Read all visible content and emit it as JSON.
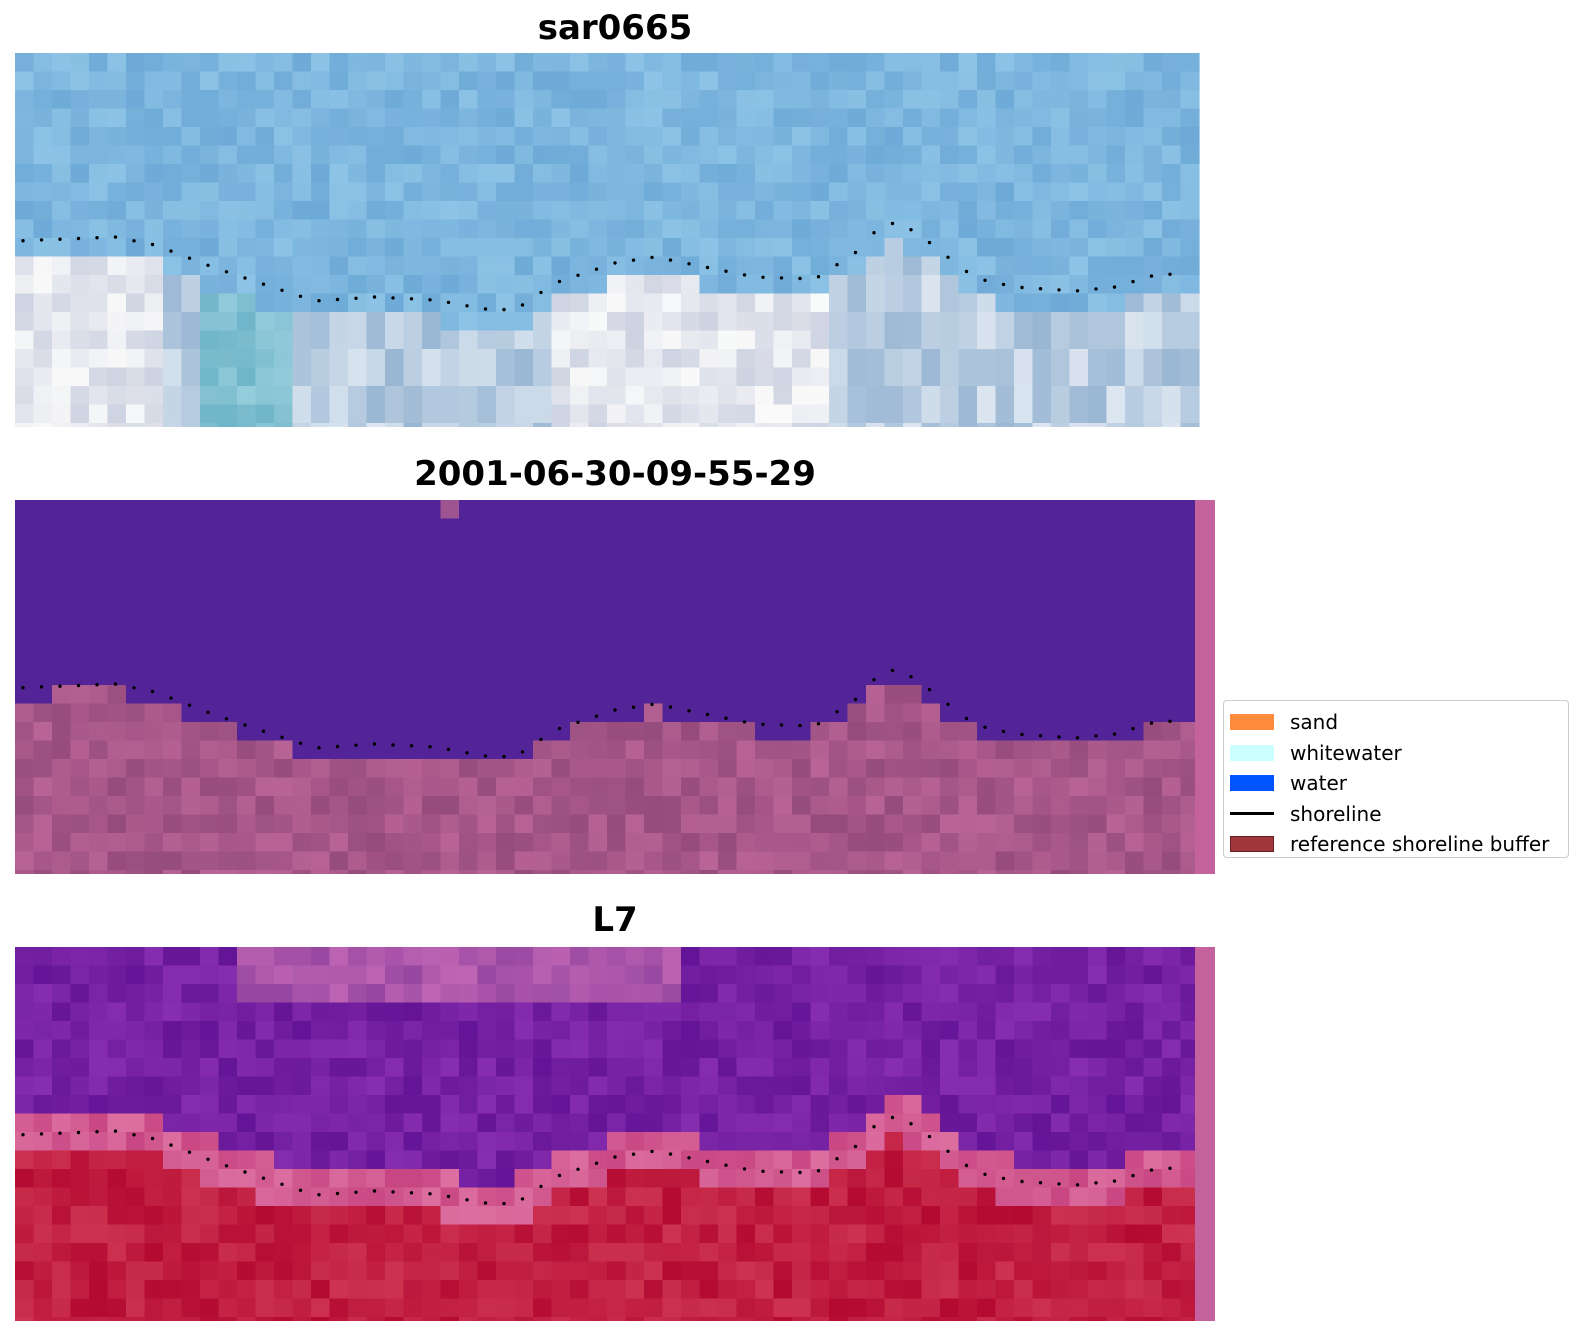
{
  "panels": [
    {
      "id": "rgb",
      "title": "sar0665",
      "palette": "rgb"
    },
    {
      "id": "classified",
      "title": "2001-06-30-09-55-29",
      "palette": "classified"
    },
    {
      "id": "index",
      "title": "L7",
      "palette": "index"
    }
  ],
  "legend": {
    "items": [
      {
        "label": "sand",
        "color": "#ff8c3c",
        "kind": "patch"
      },
      {
        "label": "whitewater",
        "color": "#ccffff",
        "kind": "patch"
      },
      {
        "label": "water",
        "color": "#0055ff",
        "kind": "patch"
      },
      {
        "label": "shoreline",
        "color": "#000000",
        "kind": "line"
      },
      {
        "label": "reference shoreline buffer",
        "color": "#a0353a",
        "kind": "patch"
      }
    ]
  },
  "colors": {
    "sky_water": "#78b4dc",
    "classified_water": "#532497",
    "classified_land": "#a75590",
    "index_water": "#7c22a0",
    "index_land": "#c0244a",
    "edge_strip": "#c3629c"
  }
}
